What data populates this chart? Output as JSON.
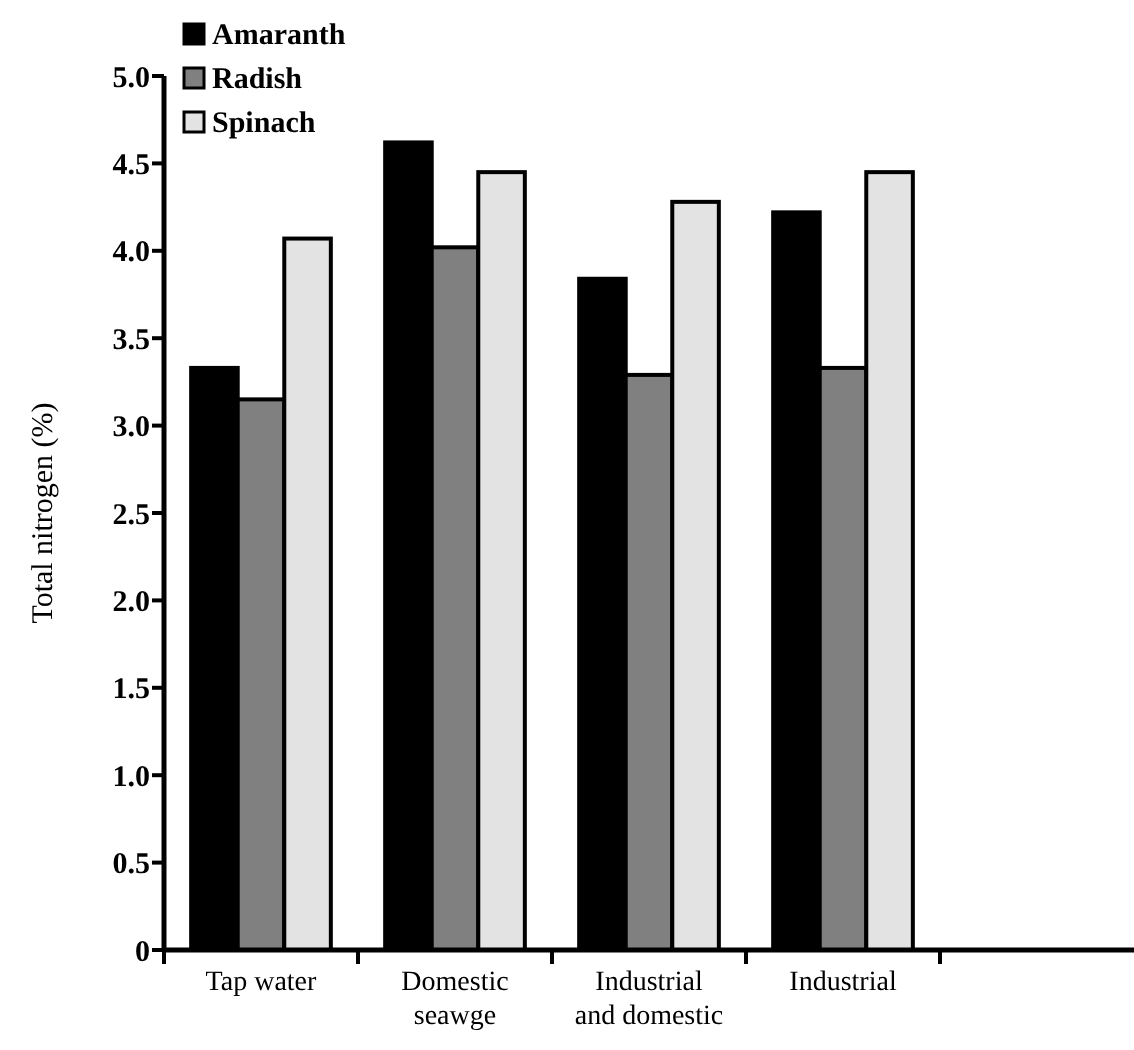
{
  "chart_data": {
    "type": "bar",
    "ylabel": "Total nitrogen (%)",
    "categories": [
      "Tap water",
      "Domestic seawge",
      "Industrial and domestic",
      "Industrial",
      null
    ],
    "series": [
      {
        "name": "Amaranth",
        "color": "#000000",
        "values": [
          3.33,
          4.62,
          3.84,
          4.22,
          null
        ]
      },
      {
        "name": "Radish",
        "color": "#808080",
        "values": [
          3.15,
          4.02,
          3.29,
          3.33,
          null
        ]
      },
      {
        "name": "Spinach",
        "color": "#e3e3e3",
        "values": [
          4.07,
          4.45,
          4.28,
          4.45,
          null
        ]
      }
    ],
    "ylim": [
      0,
      5
    ],
    "yticks": [
      0,
      0.5,
      {
        "value": 1,
        "label": "1.0"
      },
      1.5,
      {
        "value": 2,
        "label": "2.0"
      },
      2.5,
      {
        "value": 3,
        "label": "3.0"
      },
      3.5,
      {
        "value": 4,
        "label": "4.0"
      },
      4.5,
      {
        "value": 5,
        "label": "5.0"
      }
    ],
    "legend": "top left"
  }
}
